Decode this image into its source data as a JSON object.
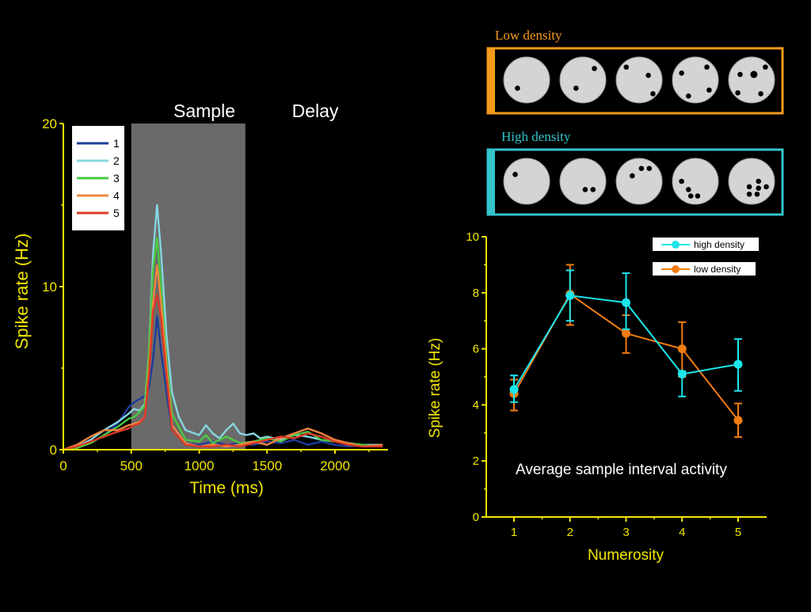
{
  "labels": {
    "sample": "Sample",
    "delay": "Delay",
    "low_density": "Low density",
    "high_density": "High density",
    "caption": "Average sample interval activity"
  },
  "colors": {
    "axis": "#f2e600",
    "sample_shade": "#6a6a6a",
    "low_border": "#f39a1c",
    "high_border": "#33c4cc",
    "high_series": "#1de6ea",
    "low_series": "#f07c12",
    "disc": "#d4d4d4"
  },
  "stimuli": {
    "low_density": [
      [
        [
          0.3,
          0.68
        ]
      ],
      [
        [
          0.75,
          0.25
        ],
        [
          0.35,
          0.68
        ]
      ],
      [
        [
          0.22,
          0.22
        ],
        [
          0.7,
          0.4
        ],
        [
          0.8,
          0.8
        ]
      ],
      [
        [
          0.2,
          0.35
        ],
        [
          0.75,
          0.22
        ],
        [
          0.8,
          0.72
        ],
        [
          0.35,
          0.85
        ]
      ],
      [
        [
          0.25,
          0.38
        ],
        [
          0.55,
          0.38
        ],
        [
          0.8,
          0.22
        ],
        [
          0.2,
          0.78
        ],
        [
          0.7,
          0.8
        ]
      ]
    ],
    "high_density": [
      [
        [
          0.25,
          0.35
        ]
      ],
      [
        [
          0.55,
          0.68
        ],
        [
          0.72,
          0.68
        ]
      ],
      [
        [
          0.35,
          0.38
        ],
        [
          0.55,
          0.22
        ],
        [
          0.72,
          0.22
        ]
      ],
      [
        [
          0.2,
          0.5
        ],
        [
          0.35,
          0.68
        ],
        [
          0.4,
          0.82
        ],
        [
          0.55,
          0.82
        ]
      ],
      [
        [
          0.65,
          0.5
        ],
        [
          0.45,
          0.62
        ],
        [
          0.65,
          0.65
        ],
        [
          0.82,
          0.62
        ],
        [
          0.45,
          0.78
        ],
        [
          0.62,
          0.78
        ]
      ]
    ]
  },
  "chart_data": [
    {
      "type": "line",
      "title": "",
      "xlabel": "Time (ms)",
      "ylabel": "Spike rate (Hz)",
      "xlim": [
        0,
        2400
      ],
      "ylim": [
        0,
        20
      ],
      "xticks": [
        0,
        500,
        1000,
        1500,
        2000
      ],
      "yticks": [
        0,
        10,
        20
      ],
      "shaded_interval": [
        500,
        1340
      ],
      "legend_position": "top-left",
      "series": [
        {
          "name": "1",
          "color": "#1d3c9a",
          "x": [
            0,
            100,
            200,
            300,
            400,
            480,
            520,
            560,
            600,
            630,
            660,
            690,
            720,
            760,
            800,
            900,
            1000,
            1100,
            1200,
            1300,
            1400,
            1500,
            1600,
            1700,
            1800,
            1900,
            2000,
            2100,
            2200,
            2350
          ],
          "y": [
            0,
            0.2,
            0.4,
            0.9,
            1.6,
            2.6,
            2.9,
            3.1,
            3.3,
            3.8,
            5.5,
            8.2,
            6,
            3.5,
            1.2,
            0.4,
            0.3,
            0.5,
            0.3,
            0.4,
            0.3,
            0.5,
            0.4,
            0.6,
            0.3,
            0.5,
            0.3,
            0.2,
            0.3,
            0.2
          ]
        },
        {
          "name": "2",
          "color": "#86d6e0",
          "x": [
            0,
            100,
            200,
            300,
            400,
            480,
            520,
            560,
            600,
            630,
            660,
            690,
            720,
            760,
            800,
            850,
            900,
            1000,
            1050,
            1100,
            1150,
            1200,
            1250,
            1300,
            1350,
            1400,
            1450,
            1500,
            1600,
            1700,
            1800,
            1900,
            2000,
            2100,
            2200,
            2350
          ],
          "y": [
            0,
            0.2,
            0.6,
            1.2,
            1.7,
            2.2,
            2.5,
            2.4,
            2.8,
            6,
            12,
            15,
            12,
            7,
            3.5,
            2,
            1.2,
            0.9,
            1.5,
            1,
            0.7,
            1.2,
            1.6,
            1,
            0.9,
            1,
            0.7,
            0.8,
            0.6,
            0.9,
            0.8,
            0.6,
            0.5,
            0.4,
            0.3,
            0.3
          ]
        },
        {
          "name": "3",
          "color": "#4cc840",
          "x": [
            0,
            100,
            200,
            300,
            400,
            480,
            520,
            560,
            600,
            630,
            660,
            690,
            720,
            760,
            800,
            900,
            1000,
            1050,
            1100,
            1200,
            1300,
            1400,
            1500,
            1600,
            1700,
            1800,
            1900,
            2000,
            2100,
            2200,
            2350
          ],
          "y": [
            0,
            0.1,
            0.4,
            0.9,
            1.4,
            1.9,
            2,
            2.3,
            2.7,
            6,
            11,
            13,
            10,
            5.5,
            2.2,
            0.6,
            0.5,
            0.9,
            0.4,
            0.8,
            0.4,
            0.5,
            0.7,
            0.5,
            0.9,
            1.1,
            0.6,
            0.5,
            0.4,
            0.3,
            0.2
          ]
        },
        {
          "name": "4",
          "color": "#f08640",
          "x": [
            0,
            100,
            200,
            300,
            400,
            480,
            520,
            560,
            600,
            630,
            660,
            690,
            720,
            760,
            800,
            900,
            1000,
            1100,
            1200,
            1300,
            1400,
            1500,
            1600,
            1700,
            1800,
            1900,
            2000,
            2100,
            2200,
            2350
          ],
          "y": [
            0,
            0.3,
            0.8,
            1.2,
            1.2,
            1.5,
            1.6,
            1.7,
            2,
            5,
            9,
            11.3,
            9,
            5,
            1.5,
            0.4,
            0.2,
            0.3,
            0.2,
            0.3,
            0.5,
            0.3,
            0.7,
            1,
            1.3,
            1,
            0.6,
            0.4,
            0.2,
            0.3
          ]
        },
        {
          "name": "5",
          "color": "#dc3a28",
          "x": [
            0,
            100,
            200,
            300,
            400,
            480,
            520,
            560,
            600,
            630,
            660,
            690,
            720,
            760,
            800,
            900,
            1000,
            1100,
            1200,
            1300,
            1400,
            1500,
            1600,
            1700,
            1800,
            1900,
            2000,
            2100,
            2200,
            2350
          ],
          "y": [
            0,
            0.2,
            0.5,
            0.8,
            1.1,
            1.3,
            1.5,
            1.6,
            2,
            4.5,
            8.5,
            9.5,
            8,
            4.5,
            1.2,
            0.3,
            0.2,
            0.2,
            0.3,
            0.2,
            0.4,
            0.6,
            0.8,
            0.7,
            1,
            0.8,
            0.5,
            0.3,
            0.2,
            0.2
          ]
        }
      ]
    },
    {
      "type": "line",
      "title": "",
      "xlabel": "Numerosity",
      "ylabel": "Spike rate (Hz)",
      "xlim": [
        0.5,
        5.5
      ],
      "ylim": [
        0,
        10
      ],
      "xticks": [
        1,
        2,
        3,
        4,
        5
      ],
      "yticks": [
        0,
        2,
        4,
        6,
        8,
        10
      ],
      "legend_position": "top-right",
      "categories": [
        1,
        2,
        3,
        4,
        5
      ],
      "series": [
        {
          "name": "high density",
          "color": "#1de6ea",
          "values": [
            4.55,
            7.9,
            7.65,
            5.1,
            5.45
          ],
          "err_low": [
            4.1,
            7,
            6.7,
            4.3,
            4.5
          ],
          "err_high": [
            5.05,
            8.8,
            8.7,
            5.2,
            6.35
          ]
        },
        {
          "name": "low density",
          "color": "#f07c12",
          "values": [
            4.4,
            7.95,
            6.55,
            6,
            3.45
          ],
          "err_low": [
            3.8,
            6.85,
            5.85,
            5,
            2.85
          ],
          "err_high": [
            4.9,
            9,
            7.2,
            6.95,
            4.05
          ]
        }
      ]
    }
  ]
}
